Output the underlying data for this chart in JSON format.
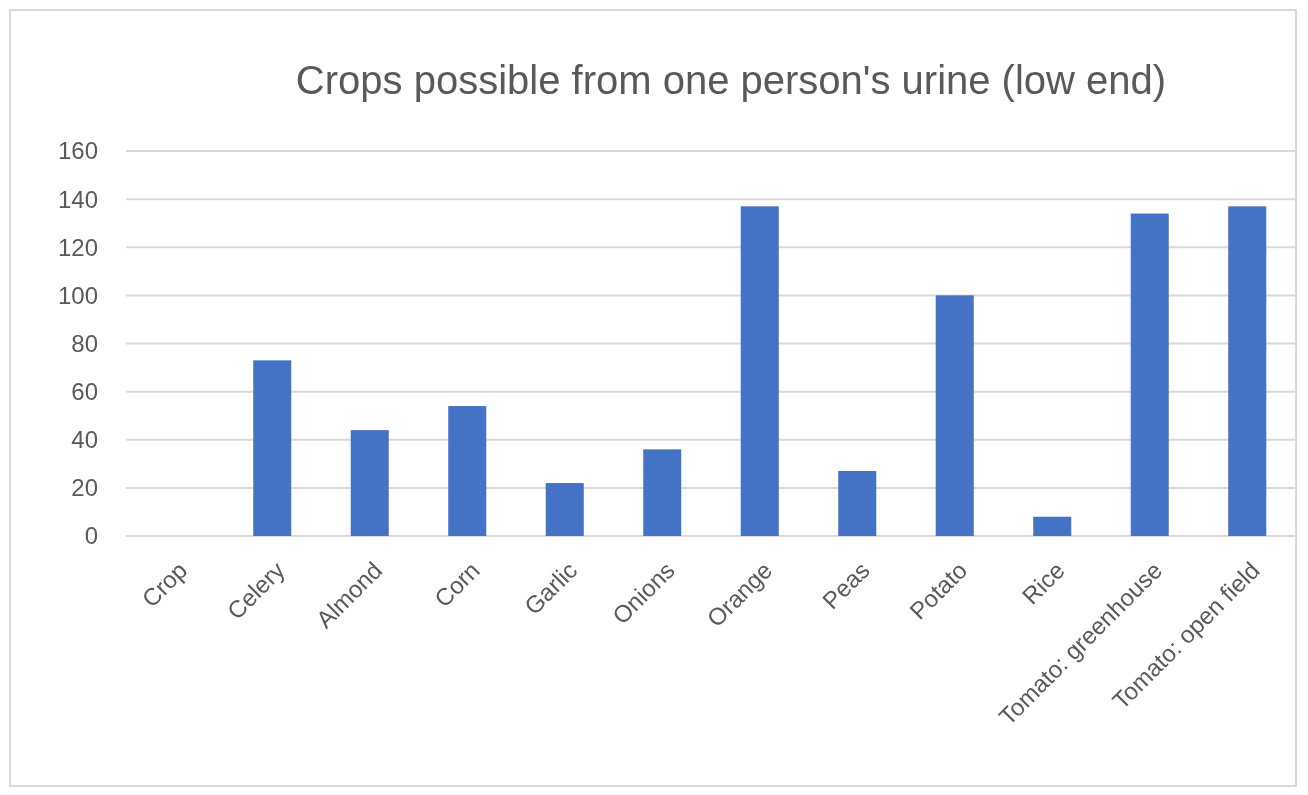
{
  "chart_data": {
    "type": "bar",
    "title": "Crops possible from one person's urine (low end)",
    "categories": [
      "Crop",
      "Celery",
      "Almond",
      "Corn",
      "Garlic",
      "Onions",
      "Orange",
      "Peas",
      "Potato",
      "Rice",
      "Tomato: greenhouse",
      "Tomato: open field"
    ],
    "values": [
      null,
      73,
      44,
      54,
      22,
      36,
      137,
      27,
      100,
      8,
      134,
      137
    ],
    "color": "#4472c4",
    "ylim": [
      0,
      160
    ],
    "yticks": [
      0,
      20,
      40,
      60,
      80,
      100,
      120,
      140,
      160
    ],
    "grid": "y"
  }
}
